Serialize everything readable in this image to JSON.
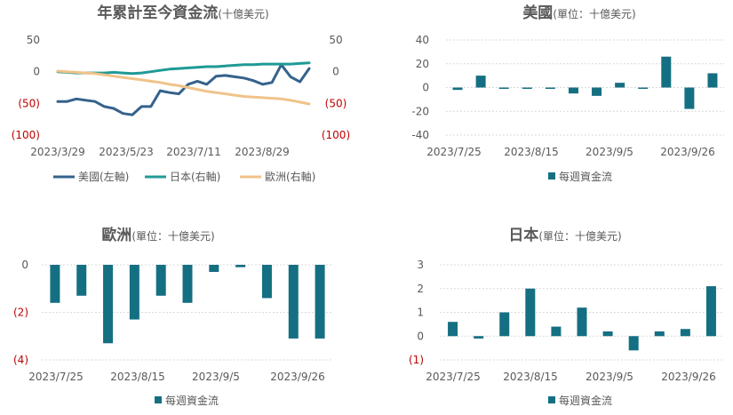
{
  "colors": {
    "teal": "#156f82",
    "us_line": "#35628c",
    "japan_line": "#1f9a96",
    "europe_line": "#f0c389",
    "neg_label": "#c00000",
    "text": "#595959"
  },
  "chart_data": [
    {
      "id": "cumulative",
      "type": "line",
      "title": "年累計至今資金流",
      "subtitle": "(十億美元)",
      "x_ticks": [
        "2023/3/29",
        "2023/5/23",
        "2023/7/11",
        "2023/8/29"
      ],
      "left_y_ticks": [
        "50",
        "0",
        "(50)",
        "(100)"
      ],
      "right_y_ticks": [
        "50",
        "0",
        "(50)",
        "(100)"
      ],
      "ylim": [
        -100,
        50
      ],
      "grid": false,
      "legend_position": "bottom",
      "series": [
        {
          "name": "美國(左軸)",
          "axis": "left",
          "color": "#35628c",
          "values": [
            -47,
            -47,
            -43,
            -45,
            -47,
            -55,
            -58,
            -66,
            -68,
            -55,
            -55,
            -30,
            -33,
            -35,
            -20,
            -15,
            -20,
            -7,
            -6,
            -8,
            -10,
            -14,
            -20,
            -17,
            11,
            -8,
            -16,
            5
          ]
        },
        {
          "name": "日本(右軸)",
          "axis": "right",
          "color": "#1f9a96",
          "values": [
            0,
            -1,
            -2,
            -2,
            -2,
            -2,
            -1,
            -2,
            -3,
            -2,
            0,
            2,
            4,
            5,
            6,
            7,
            8,
            8,
            9,
            10,
            11,
            11,
            12,
            12,
            12,
            12,
            13,
            14
          ]
        },
        {
          "name": "歐洲(右軸)",
          "axis": "right",
          "color": "#f0c389",
          "values": [
            1,
            0,
            -1,
            -2,
            -3,
            -5,
            -7,
            -9,
            -11,
            -13,
            -15,
            -17,
            -20,
            -22,
            -25,
            -28,
            -31,
            -33,
            -35,
            -37,
            -39,
            -40,
            -41,
            -42,
            -43,
            -45,
            -48,
            -51
          ]
        }
      ]
    },
    {
      "id": "us",
      "type": "bar",
      "title": "美國",
      "subtitle": "(單位：十億美元)",
      "x_ticks": [
        "2023/7/25",
        "2023/8/15",
        "2023/9/5",
        "2023/9/26"
      ],
      "y_ticks": [
        "40",
        "20",
        "0",
        "-20",
        "-40"
      ],
      "ylim": [
        -40,
        40
      ],
      "grid": true,
      "legend": "每週資金流",
      "values": [
        -2,
        10,
        0,
        0,
        -1,
        -5,
        -7,
        4,
        -1,
        26,
        -18,
        12
      ]
    },
    {
      "id": "europe",
      "type": "bar",
      "title": "歐洲",
      "subtitle": "(單位：十億美元)",
      "x_ticks": [
        "2023/7/25",
        "2023/8/15",
        "2023/9/5",
        "2023/9/26"
      ],
      "y_ticks": [
        "0",
        "(2)",
        "(4)"
      ],
      "ylim": [
        -4,
        0
      ],
      "grid": true,
      "legend": "每週資金流",
      "values": [
        -1.6,
        -1.3,
        -3.3,
        -2.3,
        -1.3,
        -1.6,
        -0.3,
        -0.1,
        -1.4,
        -3.1,
        -3.1
      ]
    },
    {
      "id": "japan",
      "type": "bar",
      "title": "日本",
      "subtitle": "(單位：十億美元)",
      "x_ticks": [
        "2023/7/25",
        "2023/8/15",
        "2023/9/5",
        "2023/9/26"
      ],
      "y_ticks": [
        "3",
        "2",
        "1",
        "0",
        "(1)"
      ],
      "ylim": [
        -1,
        3
      ],
      "grid": true,
      "legend": "每週資金流",
      "values": [
        0.6,
        -0.1,
        1.0,
        2.0,
        0.4,
        1.2,
        0.2,
        -0.6,
        0.2,
        0.3,
        2.1
      ]
    }
  ]
}
